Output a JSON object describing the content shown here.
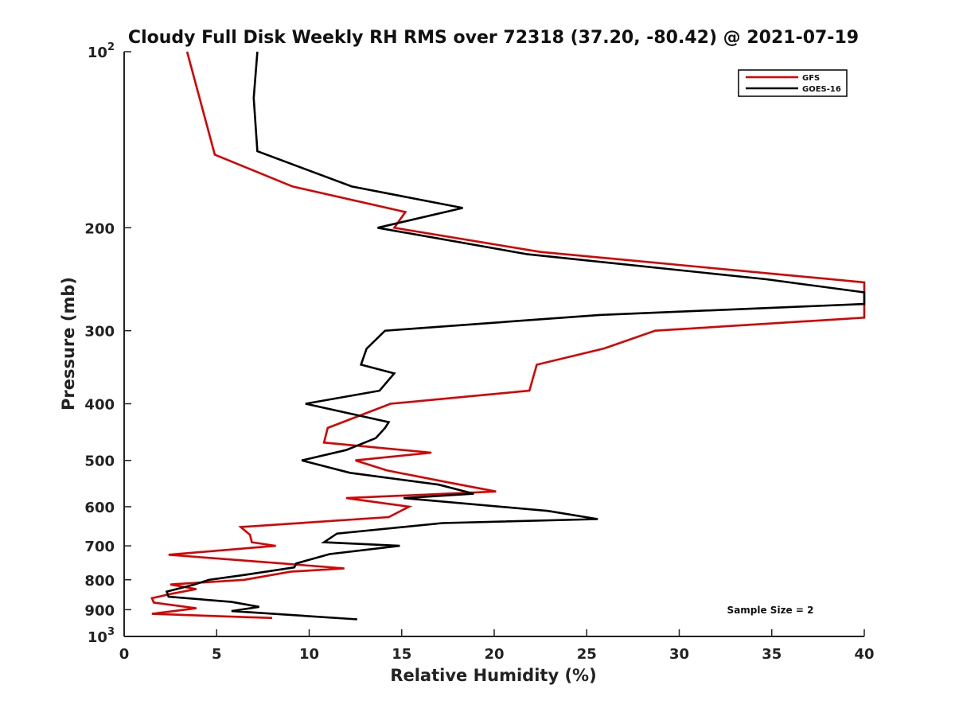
{
  "chart_data": {
    "type": "line",
    "title": "Cloudy Full Disk Weekly RH RMS over 72318 (37.20, -80.42) @ 2021-07-19",
    "xlabel": "Relative Humidity (%)",
    "ylabel": "Pressure (mb)",
    "xlim": [
      0,
      40
    ],
    "ylim": [
      100,
      1000
    ],
    "yscale": "log",
    "yreversed": true,
    "xticks": [
      0,
      5,
      10,
      15,
      20,
      25,
      30,
      35,
      40
    ],
    "xtick_labels": [
      "0",
      "5",
      "10",
      "15",
      "20",
      "25",
      "30",
      "35",
      "40"
    ],
    "yticks": [
      100,
      200,
      300,
      400,
      500,
      600,
      700,
      800,
      900,
      1000
    ],
    "ytick_labels": [
      {
        "base": "10",
        "exp": "2"
      },
      {
        "base": "200",
        "exp": ""
      },
      {
        "base": "300",
        "exp": ""
      },
      {
        "base": "400",
        "exp": ""
      },
      {
        "base": "500",
        "exp": ""
      },
      {
        "base": "600",
        "exp": ""
      },
      {
        "base": "700",
        "exp": ""
      },
      {
        "base": "800",
        "exp": ""
      },
      {
        "base": "900",
        "exp": ""
      },
      {
        "base": "10",
        "exp": "3"
      }
    ],
    "legend_position": "top-right",
    "annotation": "Sample Size = 2",
    "series": [
      {
        "name": "GFS",
        "color": "#dd0000",
        "points": [
          [
            3.4,
            100
          ],
          [
            4.9,
            150
          ],
          [
            9.1,
            170
          ],
          [
            15.2,
            188
          ],
          [
            14.6,
            200
          ],
          [
            22.5,
            220
          ],
          [
            40,
            248
          ],
          [
            40,
            285
          ],
          [
            28.7,
            300
          ],
          [
            25.9,
            322
          ],
          [
            22.3,
            343
          ],
          [
            21.9,
            380
          ],
          [
            14.4,
            400
          ],
          [
            11.0,
            440
          ],
          [
            10.8,
            466
          ],
          [
            16.6,
            485
          ],
          [
            12.5,
            500
          ],
          [
            14.2,
            520
          ],
          [
            17.5,
            545
          ],
          [
            20.1,
            565
          ],
          [
            12.0,
            580
          ],
          [
            15.4,
            600
          ],
          [
            14.3,
            625
          ],
          [
            6.3,
            650
          ],
          [
            6.8,
            670
          ],
          [
            6.9,
            690
          ],
          [
            8.2,
            700
          ],
          [
            2.4,
            725
          ],
          [
            8.5,
            750
          ],
          [
            11.9,
            765
          ],
          [
            9.0,
            775
          ],
          [
            6.5,
            800
          ],
          [
            2.5,
            815
          ],
          [
            3.9,
            830
          ],
          [
            2.6,
            845
          ],
          [
            1.5,
            860
          ],
          [
            1.6,
            875
          ],
          [
            3.9,
            895
          ],
          [
            1.5,
            915
          ],
          [
            8.0,
            930
          ]
        ]
      },
      {
        "name": "GOES-16",
        "color": "#000000",
        "points": [
          [
            7.2,
            100
          ],
          [
            7.0,
            120
          ],
          [
            7.2,
            148
          ],
          [
            12.3,
            170
          ],
          [
            18.3,
            185
          ],
          [
            13.7,
            200
          ],
          [
            21.8,
            222
          ],
          [
            34.7,
            245
          ],
          [
            40,
            258
          ],
          [
            40,
            270
          ],
          [
            25.7,
            282
          ],
          [
            14.1,
            300
          ],
          [
            13.1,
            322
          ],
          [
            12.8,
            343
          ],
          [
            14.6,
            355
          ],
          [
            13.8,
            380
          ],
          [
            9.8,
            400
          ],
          [
            14.3,
            430
          ],
          [
            14.1,
            440
          ],
          [
            13.6,
            458
          ],
          [
            12.0,
            480
          ],
          [
            9.6,
            500
          ],
          [
            12.2,
            525
          ],
          [
            17.0,
            550
          ],
          [
            18.9,
            570
          ],
          [
            15.1,
            580
          ],
          [
            22.9,
            610
          ],
          [
            25.6,
            630
          ],
          [
            17.2,
            640
          ],
          [
            11.5,
            667
          ],
          [
            10.8,
            690
          ],
          [
            14.9,
            700
          ],
          [
            11.1,
            723
          ],
          [
            9.3,
            750
          ],
          [
            9.2,
            762
          ],
          [
            6.5,
            785
          ],
          [
            4.6,
            800
          ],
          [
            3.8,
            815
          ],
          [
            2.3,
            838
          ],
          [
            2.4,
            855
          ],
          [
            5.8,
            873
          ],
          [
            7.3,
            890
          ],
          [
            5.8,
            905
          ],
          [
            12.6,
            935
          ]
        ]
      }
    ]
  }
}
